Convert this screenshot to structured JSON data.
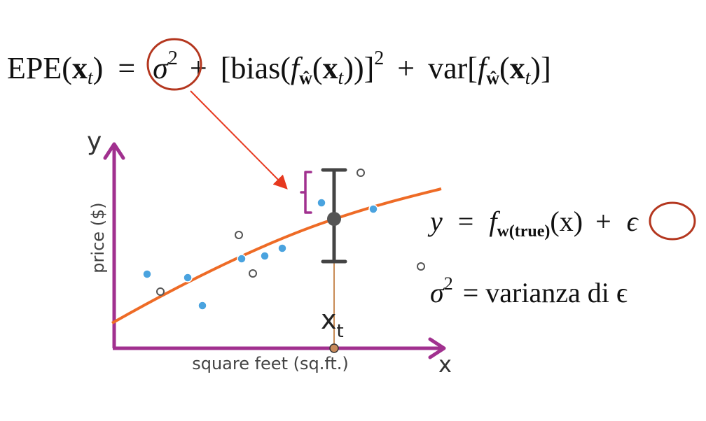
{
  "formula": {
    "lhs": "EPE",
    "arg": "x",
    "arg_sub": "t",
    "equals": "=",
    "sigma": "σ",
    "sq": "2",
    "plus": "+",
    "bias_text": "[bias(",
    "f": "f",
    "f_sub": "ŵ",
    "bias_close": "))]",
    "var_text": "var[",
    "var_close": ")]"
  },
  "plot": {
    "y_axis_label": "y",
    "x_axis_label": "x",
    "y_axis_title": "price ($)",
    "x_axis_title": "square feet (sq.ft.)",
    "x_t_label": "x",
    "x_t_sub": "t"
  },
  "true_model": {
    "y": "y",
    "equals": "=",
    "f": "f",
    "f_sub": "w(true)",
    "arg": "(x)",
    "plus": "+",
    "epsilon": "ϵ"
  },
  "noise_def": {
    "sigma": "σ",
    "sq": "2",
    "text": "= varianza di ϵ"
  },
  "colors": {
    "axis": "#a1308f",
    "curve": "#ee6b26",
    "blue_point": "#4aa3df",
    "circle_highlight": "#b4371f",
    "arrow": "#e6391f",
    "error_bar": "#444444",
    "xt_line": "#b5651d"
  }
}
